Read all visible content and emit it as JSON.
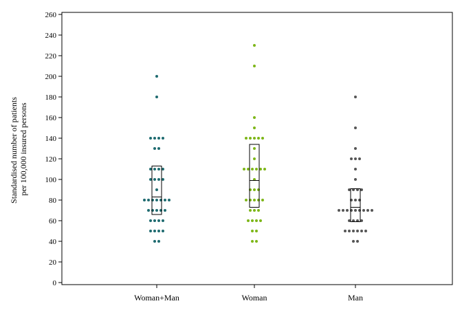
{
  "chart_data": {
    "type": "scatter",
    "subtype": "dot-strip-with-box",
    "title": "",
    "xlabel": "",
    "ylabel_lines": [
      "Standardised number of patients",
      "per 100,000 insured persons"
    ],
    "ylim": [
      0,
      260
    ],
    "yticks": [
      0,
      20,
      40,
      60,
      80,
      100,
      120,
      140,
      160,
      180,
      200,
      220,
      240,
      260
    ],
    "categories": [
      "Woman+Man",
      "Woman",
      "Man"
    ],
    "grid": false,
    "legend": "none",
    "series": [
      {
        "category": "Woman+Man",
        "color": "#1f6b70",
        "box": {
          "q1": 66,
          "median": 83,
          "q3": 113
        },
        "values": [
          200,
          180,
          140,
          140,
          140,
          140,
          130,
          130,
          110,
          110,
          110,
          110,
          100,
          100,
          100,
          100,
          90,
          80,
          80,
          80,
          80,
          80,
          80,
          80,
          70,
          70,
          70,
          70,
          70,
          60,
          60,
          60,
          60,
          50,
          50,
          50,
          50,
          40,
          40
        ]
      },
      {
        "category": "Woman",
        "color": "#7db618",
        "box": {
          "q1": 73,
          "median": 99,
          "q3": 134
        },
        "values": [
          230,
          210,
          160,
          150,
          140,
          140,
          140,
          140,
          140,
          130,
          120,
          110,
          110,
          110,
          110,
          110,
          110,
          100,
          90,
          90,
          90,
          80,
          80,
          80,
          80,
          80,
          70,
          70,
          70,
          60,
          60,
          60,
          60,
          50,
          50,
          40,
          40
        ]
      },
      {
        "category": "Man",
        "color": "#555555",
        "box": {
          "q1": 59,
          "median": 73,
          "q3": 91
        },
        "values": [
          180,
          150,
          130,
          120,
          120,
          120,
          110,
          100,
          90,
          90,
          90,
          90,
          80,
          80,
          80,
          70,
          70,
          70,
          70,
          70,
          70,
          70,
          70,
          70,
          60,
          60,
          60,
          60,
          50,
          50,
          50,
          50,
          50,
          50,
          40,
          40
        ]
      }
    ]
  }
}
